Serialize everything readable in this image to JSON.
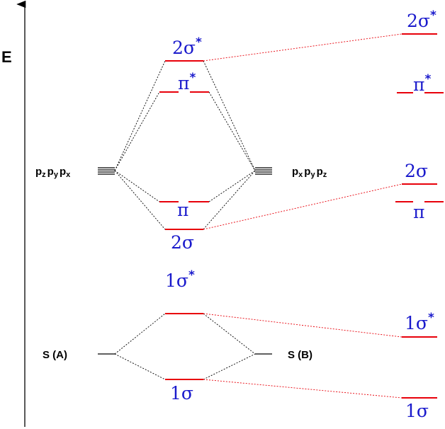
{
  "axis": {
    "label": "E"
  },
  "center_levels": {
    "two_sigma_star": {
      "main": "2σ",
      "sup": "*"
    },
    "pi_star": {
      "main": "π",
      "sup": "*"
    },
    "pi": {
      "main": "π"
    },
    "two_sigma": {
      "main": "2σ"
    },
    "one_sigma_star": {
      "main": "1σ",
      "sup": "*"
    },
    "one_sigma": {
      "main": "1σ"
    }
  },
  "right_levels": {
    "two_sigma_star": {
      "main": "2σ",
      "sup": "*"
    },
    "pi_star": {
      "main": "π",
      "sup": "*"
    },
    "two_sigma": {
      "main": "2σ"
    },
    "pi": {
      "main": "π"
    },
    "one_sigma_star": {
      "main": "1σ",
      "sup": "*"
    },
    "one_sigma": {
      "main": "1σ"
    }
  },
  "atomic_orbitals": {
    "left_p": [
      {
        "base": "p",
        "sub": "z"
      },
      {
        "base": "p",
        "sub": "y"
      },
      {
        "base": "p",
        "sub": "x"
      }
    ],
    "right_p": [
      {
        "base": "p",
        "sub": "x"
      },
      {
        "base": "p",
        "sub": "y"
      },
      {
        "base": "p",
        "sub": "z"
      }
    ],
    "left_s": "S (A)",
    "right_s": "S (B)"
  },
  "colors": {
    "level": "#e8000a",
    "label": "#1a1acc",
    "guide": "#000000"
  }
}
